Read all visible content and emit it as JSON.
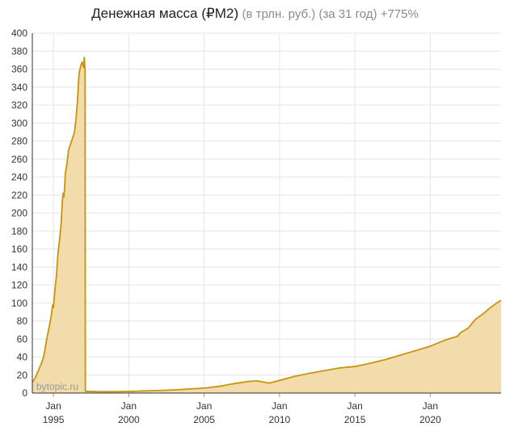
{
  "title": "Денежная масса (₽M2)",
  "subtitle": "(в трлн. руб.) (за 31 год) +775%",
  "watermark": "bytopic.ru",
  "colors": {
    "line": "#c8940a",
    "fill": "#f3dcab",
    "grid": "#e6e6e6",
    "axis": "#333333",
    "watermark": "#9a9a9a"
  },
  "chart_data": {
    "type": "area",
    "ylim": [
      0,
      400
    ],
    "yticks": [
      0,
      20,
      40,
      60,
      80,
      100,
      120,
      140,
      160,
      180,
      200,
      220,
      240,
      260,
      280,
      300,
      320,
      340,
      360,
      380,
      400
    ],
    "xlim": [
      1993.6,
      2024.7
    ],
    "xticks": [
      {
        "year": 1995,
        "label1": "Jan",
        "label2": "1995"
      },
      {
        "year": 2000,
        "label1": "Jan",
        "label2": "2000"
      },
      {
        "year": 2005,
        "label1": "Jan",
        "label2": "2005"
      },
      {
        "year": 2010,
        "label1": "Jan",
        "label2": "2010"
      },
      {
        "year": 2015,
        "label1": "Jan",
        "label2": "2015"
      },
      {
        "year": 2020,
        "label1": "Jan",
        "label2": "2020"
      }
    ],
    "grid": true,
    "points": [
      [
        1993.6,
        12
      ],
      [
        1993.8,
        17
      ],
      [
        1994.0,
        25
      ],
      [
        1994.2,
        33
      ],
      [
        1994.35,
        40
      ],
      [
        1994.5,
        55
      ],
      [
        1994.7,
        72
      ],
      [
        1994.85,
        85
      ],
      [
        1994.95,
        98
      ],
      [
        1995.0,
        95
      ],
      [
        1995.1,
        115
      ],
      [
        1995.2,
        130
      ],
      [
        1995.3,
        155
      ],
      [
        1995.4,
        170
      ],
      [
        1995.5,
        185
      ],
      [
        1995.6,
        215
      ],
      [
        1995.65,
        222
      ],
      [
        1995.7,
        218
      ],
      [
        1995.8,
        245
      ],
      [
        1995.9,
        255
      ],
      [
        1996.0,
        270
      ],
      [
        1996.2,
        280
      ],
      [
        1996.4,
        290
      ],
      [
        1996.5,
        305
      ],
      [
        1996.6,
        325
      ],
      [
        1996.7,
        355
      ],
      [
        1996.8,
        363
      ],
      [
        1996.9,
        368
      ],
      [
        1997.0,
        362
      ],
      [
        1997.05,
        373
      ],
      [
        1997.1,
        358
      ],
      [
        1997.12,
        2
      ],
      [
        1998.0,
        1.5
      ],
      [
        1999.0,
        1.5
      ],
      [
        2000.0,
        1.8
      ],
      [
        2001.0,
        2.3
      ],
      [
        2002.0,
        2.8
      ],
      [
        2003.0,
        3.5
      ],
      [
        2004.0,
        4.5
      ],
      [
        2005.0,
        5.5
      ],
      [
        2006.0,
        7.5
      ],
      [
        2007.0,
        10.5
      ],
      [
        2008.0,
        13
      ],
      [
        2008.5,
        13.5
      ],
      [
        2009.0,
        12
      ],
      [
        2009.3,
        11
      ],
      [
        2010.0,
        14
      ],
      [
        2011.0,
        18.5
      ],
      [
        2012.0,
        22
      ],
      [
        2013.0,
        25
      ],
      [
        2014.0,
        28
      ],
      [
        2015.0,
        29.5
      ],
      [
        2016.0,
        33
      ],
      [
        2017.0,
        37
      ],
      [
        2018.0,
        42
      ],
      [
        2019.0,
        47
      ],
      [
        2020.0,
        52
      ],
      [
        2021.0,
        59
      ],
      [
        2021.8,
        63
      ],
      [
        2022.0,
        67
      ],
      [
        2022.5,
        72
      ],
      [
        2023.0,
        82
      ],
      [
        2023.5,
        88
      ],
      [
        2024.0,
        95
      ],
      [
        2024.4,
        100
      ],
      [
        2024.7,
        103
      ]
    ]
  }
}
